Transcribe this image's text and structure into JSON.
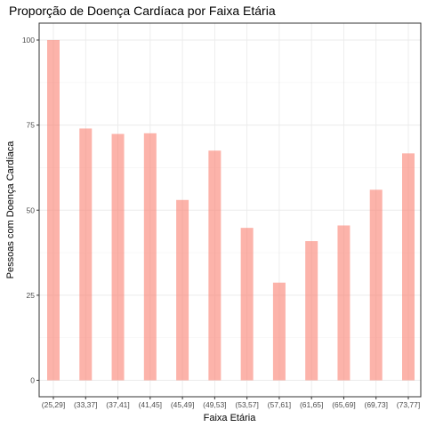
{
  "chart_data": {
    "type": "bar",
    "title": "Proporção de Doença Cardíaca por Faixa Etária",
    "xlabel": "Faixa Etária",
    "ylabel": "Pessoas com Doença Cardíaca",
    "categories": [
      "(25,29]",
      "(33,37]",
      "(37,41]",
      "(41,45]",
      "(45,49]",
      "(49,53]",
      "(53,57]",
      "(57,61]",
      "(61,65]",
      "(65,69]",
      "(69,73]",
      "(73,77]"
    ],
    "values": [
      100,
      74,
      72.4,
      72.6,
      53,
      67.5,
      44.8,
      28.7,
      40.9,
      45.5,
      56,
      66.7
    ],
    "ylim": [
      0,
      100
    ],
    "yticks": [
      0,
      25,
      50,
      75,
      100
    ],
    "grid": true,
    "bar_color": "#fa8072",
    "bar_opacity": 0.6
  }
}
